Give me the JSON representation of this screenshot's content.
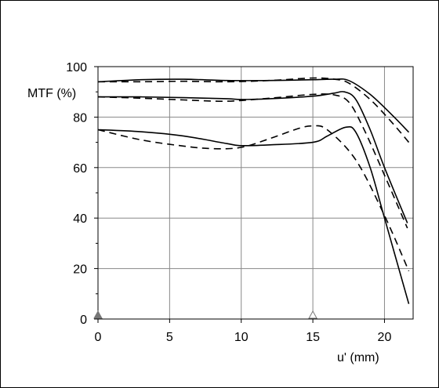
{
  "chart_data": {
    "type": "line",
    "xlabel": "u' (mm)",
    "ylabel": "MTF (%)",
    "xlim": [
      0,
      22
    ],
    "ylim": [
      0,
      100
    ],
    "xticks": [
      0,
      5,
      10,
      15,
      20
    ],
    "yticks": [
      0,
      20,
      40,
      60,
      80,
      100
    ],
    "grid": true,
    "markers": [
      {
        "x": 0,
        "symbol": "filled-triangle",
        "color": "#777777"
      },
      {
        "x": 15,
        "symbol": "open-triangle",
        "color": "#777777"
      }
    ],
    "series": [
      {
        "style": "solid",
        "x": [
          0,
          3,
          6,
          9,
          12,
          15,
          16.5,
          17.5,
          19,
          20.5,
          21.7
        ],
        "y": [
          94,
          94.8,
          95,
          94.5,
          94.5,
          94.8,
          95,
          94.5,
          89,
          81,
          74
        ]
      },
      {
        "style": "dashed",
        "x": [
          0,
          3,
          6,
          9,
          12,
          15,
          16.5,
          17.5,
          19,
          20.5,
          21.7
        ],
        "y": [
          94,
          94,
          94.2,
          94,
          94.5,
          95.5,
          95,
          93.5,
          87,
          78,
          70
        ]
      },
      {
        "style": "solid",
        "x": [
          0,
          3,
          6,
          9,
          10,
          12,
          15,
          16.5,
          17.2,
          18,
          19,
          20,
          21.6
        ],
        "y": [
          88,
          88,
          87.7,
          87.3,
          87,
          87.3,
          88.3,
          89.5,
          90,
          87,
          75,
          60,
          38
        ]
      },
      {
        "style": "dashed",
        "x": [
          0,
          3,
          6,
          9,
          12,
          15,
          16.5,
          17.5,
          18.5,
          20,
          21.6
        ],
        "y": [
          88,
          87.5,
          86.8,
          86.3,
          87.5,
          89,
          88.8,
          86,
          76,
          57,
          36
        ]
      },
      {
        "style": "solid",
        "x": [
          0,
          3,
          6,
          9,
          10,
          12,
          15,
          16,
          17.3,
          18,
          19,
          20,
          21.7
        ],
        "y": [
          75,
          74.2,
          72.5,
          69.5,
          68.7,
          69,
          70,
          72.5,
          76,
          74,
          60,
          40,
          6
        ]
      },
      {
        "style": "dashed",
        "x": [
          0,
          3,
          6,
          8,
          10,
          12,
          14,
          15,
          16,
          18,
          20,
          21.7
        ],
        "y": [
          75,
          71,
          68.5,
          67.5,
          68,
          71.5,
          75.5,
          76.5,
          75,
          63,
          41,
          19
        ]
      }
    ]
  }
}
